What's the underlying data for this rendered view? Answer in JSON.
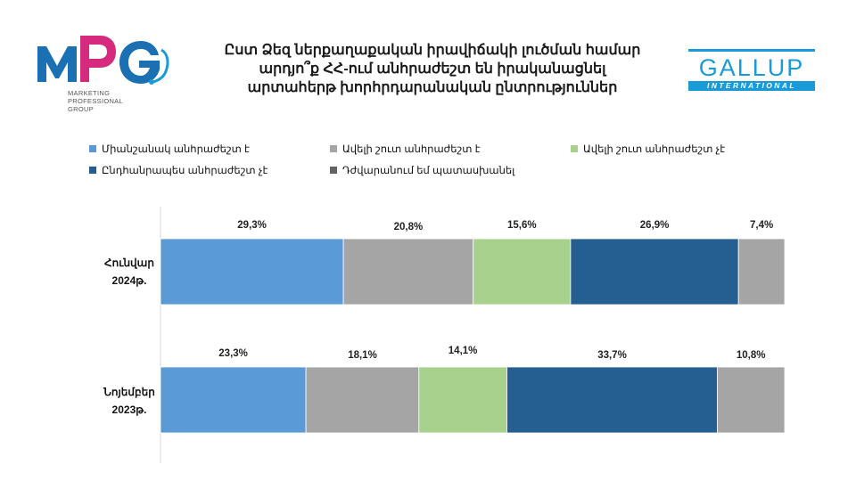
{
  "logo_left": {
    "text": "MPG",
    "subtitle": "MARKETING\nPROFESSIONAL\nGROUP",
    "colors": {
      "blue": "#1b6fb3",
      "magenta": "#d62a7e",
      "headset": "#1a9bd7"
    }
  },
  "title_lines": [
    "Ըստ Ձեզ ներքաղաքական իրավիճակի լուծման համար",
    "արդյո՞ք ՀՀ-ում անհրաժեշտ են իրականացնել",
    "արտահերթ խորհրդարանական ընտրություններ"
  ],
  "logo_right": {
    "word": "GALLUP",
    "bar_text": "INTERNATIONAL",
    "color": "#1a9bd7"
  },
  "chart_data": {
    "type": "bar",
    "orientation": "horizontal",
    "stacked": "100%",
    "categories": [
      "Հունվար 2024թ.",
      "Նոյեմբեր 2023թ."
    ],
    "category_lines": [
      [
        "Հունվար",
        "2024թ."
      ],
      [
        "Նոյեմբեր",
        "2023թ."
      ]
    ],
    "series": [
      {
        "name": "Միանշանակ անհրաժեշտ է",
        "color": "#5b9bd5",
        "values": [
          29.3,
          23.3
        ],
        "labels": [
          "29,3%",
          "23,3%"
        ]
      },
      {
        "name": "Ավելի շուտ անհրաժեշտ է",
        "color": "#a5a5a5",
        "values": [
          20.8,
          18.1
        ],
        "labels": [
          "20,8%",
          "18,1%"
        ]
      },
      {
        "name": "Ավելի շուտ անհրաժեշտ չէ",
        "color": "#a9d18e",
        "values": [
          15.6,
          14.1
        ],
        "labels": [
          "15,6%",
          "14,1%"
        ]
      },
      {
        "name": "Ընդհանրապես անհրաժեշտ չէ",
        "color": "#255e91",
        "values": [
          26.9,
          33.7
        ],
        "labels": [
          "26,9%",
          "33,7%"
        ]
      },
      {
        "name": "Դժվարանում եմ պատասխանել",
        "color": "#a5a5a5",
        "legend_color": "#636363",
        "values": [
          7.4,
          10.8
        ],
        "labels": [
          "7,4%",
          "10,8%"
        ]
      }
    ],
    "xlim": [
      0,
      100
    ],
    "legend_position": "top",
    "grid": false
  }
}
